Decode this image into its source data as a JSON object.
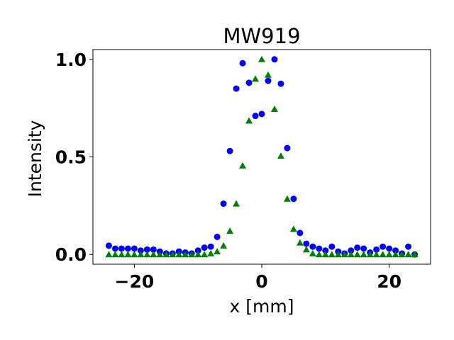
{
  "chart_data": {
    "type": "scatter",
    "title": "MW919",
    "xlabel": "x [mm]",
    "ylabel": "Intensity",
    "xlim": [
      -26.5,
      26.5
    ],
    "ylim": [
      -0.05,
      1.05
    ],
    "xticks": [
      -20,
      0,
      20
    ],
    "xtick_labels": [
      "−20",
      "0",
      "20"
    ],
    "yticks": [
      0.0,
      0.5,
      1.0
    ],
    "ytick_labels": [
      "0.0",
      "0.5",
      "1.0"
    ],
    "grid": false,
    "series": [
      {
        "marker": "circle",
        "color": "#0000ff",
        "x": [
          -24,
          -23,
          -22,
          -21,
          -20,
          -19,
          -18,
          -17,
          -16,
          -15,
          -14,
          -13,
          -12,
          -11,
          -10,
          -9,
          -8,
          -7,
          -6,
          -5,
          -4,
          -3,
          -2,
          -1,
          0,
          1,
          2,
          3,
          4,
          5,
          6,
          7,
          8,
          9,
          10,
          11,
          12,
          13,
          14,
          15,
          16,
          17,
          18,
          19,
          20,
          21,
          22,
          23,
          24
        ],
        "y": [
          0.045,
          0.03,
          0.03,
          0.03,
          0.03,
          0.02,
          0.025,
          0.025,
          0.015,
          0.005,
          0.005,
          0.015,
          0.01,
          0.005,
          0.02,
          0.035,
          0.04,
          0.09,
          0.26,
          0.53,
          0.85,
          0.98,
          0.88,
          0.71,
          0.72,
          0.89,
          1.0,
          0.875,
          0.545,
          0.285,
          0.11,
          0.055,
          0.04,
          0.03,
          0.02,
          0.04,
          0.015,
          0.005,
          0.02,
          0.035,
          0.03,
          0.01,
          0.025,
          0.04,
          0.03,
          0.02,
          0.005,
          0.04,
          0.0
        ]
      },
      {
        "marker": "triangle",
        "color": "#008000",
        "x": [
          -24,
          -23,
          -22,
          -21,
          -20,
          -19,
          -18,
          -17,
          -16,
          -15,
          -14,
          -13,
          -12,
          -11,
          -10,
          -9,
          -8,
          -7,
          -6,
          -5,
          -4,
          -3,
          -2,
          -1,
          0,
          1,
          2,
          3,
          4,
          5,
          6,
          7,
          8,
          9,
          10,
          11,
          12,
          13,
          14,
          15,
          16,
          17,
          18,
          19,
          20,
          21,
          22,
          23,
          24
        ],
        "y": [
          0.0,
          0.0,
          0.0,
          0.0,
          0.0,
          0.0,
          0.0,
          0.0,
          0.0,
          0.0,
          0.0,
          0.0,
          0.0,
          0.0,
          0.0,
          0.0,
          0.005,
          0.015,
          0.045,
          0.12,
          0.26,
          0.455,
          0.685,
          0.9,
          1.0,
          0.92,
          0.745,
          0.505,
          0.285,
          0.13,
          0.06,
          0.025,
          0.005,
          0.0,
          0.0,
          0.0,
          0.0,
          0.0,
          0.0,
          0.0,
          0.0,
          0.0,
          0.0,
          0.0,
          0.0,
          0.0,
          0.0,
          0.0,
          0.0
        ]
      }
    ]
  }
}
